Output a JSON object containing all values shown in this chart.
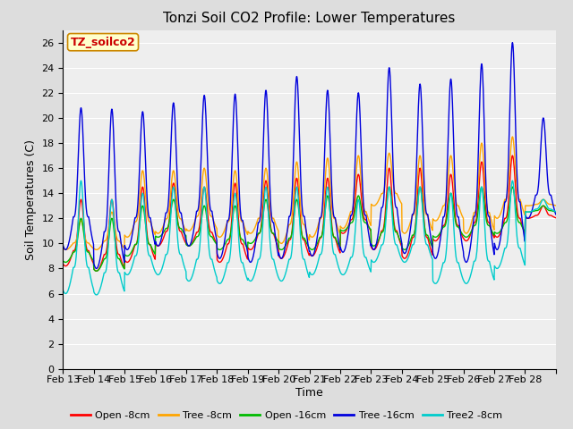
{
  "title": "Tonzi Soil CO2 Profile: Lower Temperatures",
  "xlabel": "Time",
  "ylabel": "Soil Temperatures (C)",
  "ylim": [
    0,
    27
  ],
  "yticks": [
    0,
    2,
    4,
    6,
    8,
    10,
    12,
    14,
    16,
    18,
    20,
    22,
    24,
    26
  ],
  "date_labels": [
    "Feb 13",
    "Feb 14",
    "Feb 15",
    "Feb 16",
    "Feb 17",
    "Feb 18",
    "Feb 19",
    "Feb 20",
    "Feb 21",
    "Feb 22",
    "Feb 23",
    "Feb 24",
    "Feb 25",
    "Feb 26",
    "Feb 27",
    "Feb 28"
  ],
  "series": [
    {
      "label": "Open -8cm",
      "color": "#ff0000"
    },
    {
      "label": "Tree -8cm",
      "color": "#ffa500"
    },
    {
      "label": "Open -16cm",
      "color": "#00bb00"
    },
    {
      "label": "Tree -16cm",
      "color": "#0000dd"
    },
    {
      "label": "Tree2 -8cm",
      "color": "#00cccc"
    }
  ],
  "annotation_text": "TZ_soilco2",
  "annotation_color": "#cc0000",
  "annotation_bg": "#ffffcc",
  "bg_color": "#dddddd",
  "plot_bg": "#eeeeee",
  "title_fontsize": 11,
  "axis_label_fontsize": 9,
  "tick_fontsize": 8,
  "legend_fontsize": 8,
  "n_days": 16,
  "ppd": 96,
  "daily_peaks_tree16": [
    20.8,
    20.7,
    20.5,
    21.2,
    21.8,
    21.9,
    22.2,
    23.3,
    22.2,
    22.0,
    24.0,
    22.7,
    23.1,
    24.3,
    26.0,
    20.0
  ],
  "daily_mins_tree16": [
    9.5,
    8.0,
    9.5,
    9.8,
    9.8,
    8.8,
    8.5,
    8.8,
    9.0,
    9.3,
    9.5,
    9.2,
    8.8,
    8.5,
    9.5,
    12.0
  ],
  "daily_peaks_open8": [
    13.5,
    13.5,
    14.5,
    14.8,
    14.5,
    14.8,
    15.0,
    15.2,
    15.2,
    15.5,
    16.0,
    16.0,
    15.5,
    16.5,
    17.0,
    13.0
  ],
  "daily_mins_open8": [
    8.2,
    7.8,
    8.5,
    9.8,
    9.8,
    8.5,
    9.5,
    8.8,
    9.0,
    10.8,
    9.5,
    8.8,
    10.2,
    10.2,
    10.5,
    12.0
  ],
  "daily_peaks_tree8": [
    11.8,
    12.5,
    15.8,
    15.8,
    16.0,
    15.8,
    16.0,
    16.5,
    16.8,
    17.0,
    17.2,
    17.0,
    17.0,
    18.0,
    18.5,
    13.5
  ],
  "daily_mins_tree8": [
    9.5,
    9.5,
    10.5,
    10.8,
    11.0,
    10.5,
    10.8,
    10.0,
    10.5,
    11.2,
    13.0,
    10.8,
    11.8,
    10.8,
    12.0,
    13.0
  ],
  "daily_peaks_open16": [
    12.0,
    12.0,
    13.0,
    13.5,
    13.0,
    13.0,
    13.5,
    13.5,
    13.8,
    13.8,
    14.5,
    14.5,
    14.0,
    14.5,
    14.5,
    13.0
  ],
  "daily_mins_open16": [
    8.5,
    7.8,
    9.0,
    10.5,
    9.8,
    9.5,
    10.0,
    9.5,
    9.5,
    11.0,
    9.8,
    9.5,
    10.5,
    10.5,
    10.8,
    12.5
  ],
  "daily_peaks_tree2_8": [
    15.0,
    13.5,
    14.0,
    14.5,
    14.5,
    14.0,
    14.5,
    14.5,
    14.5,
    13.5,
    14.5,
    14.5,
    14.0,
    14.5,
    15.0,
    13.5
  ],
  "daily_mins_tree2_8": [
    6.0,
    5.9,
    7.5,
    7.5,
    7.0,
    6.8,
    7.0,
    7.0,
    7.5,
    7.5,
    8.5,
    8.5,
    6.8,
    6.8,
    8.0,
    12.5
  ]
}
